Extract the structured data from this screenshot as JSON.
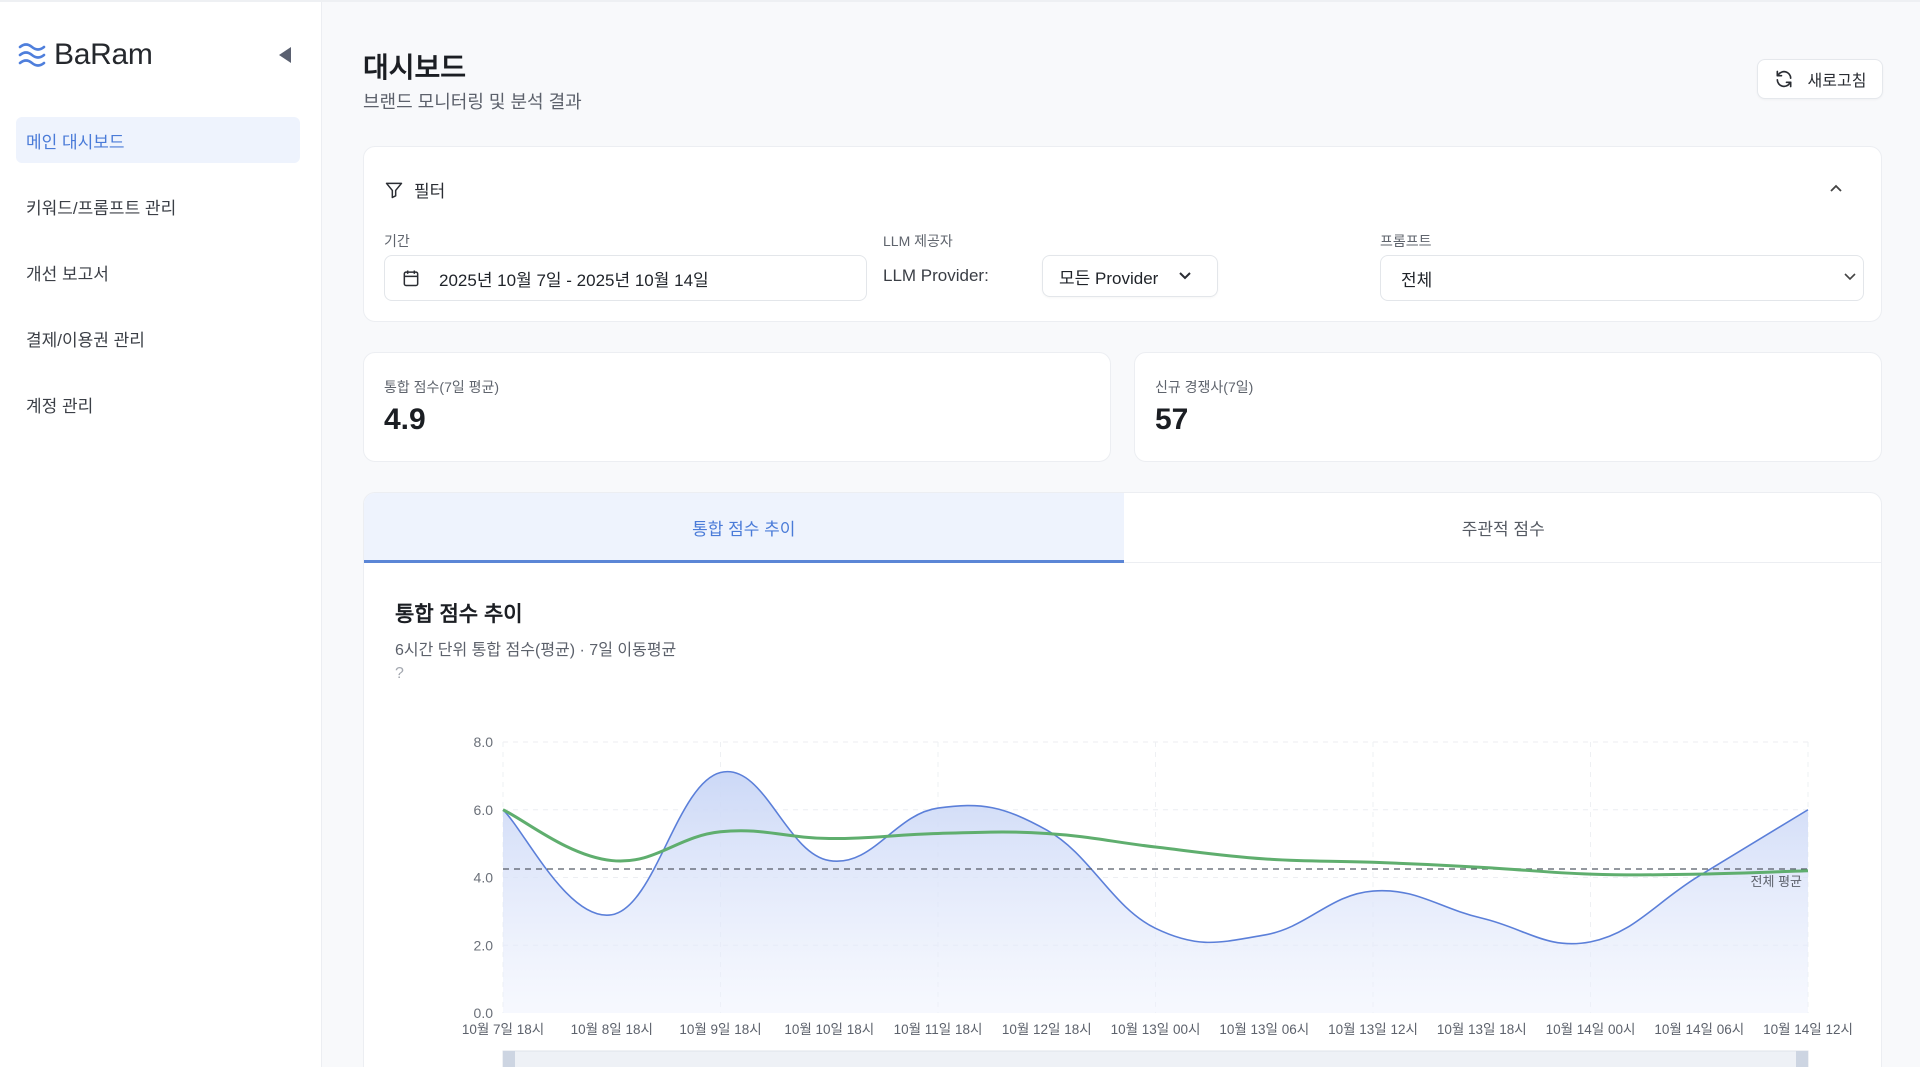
{
  "app": {
    "name": "BaRam"
  },
  "sidebar": {
    "items": [
      {
        "label": "메인 대시보드",
        "active": true
      },
      {
        "label": "키워드/프롬프트 관리",
        "active": false
      },
      {
        "label": "개선 보고서",
        "active": false
      },
      {
        "label": "결제/이용권 관리",
        "active": false
      },
      {
        "label": "계정 관리",
        "active": false
      }
    ]
  },
  "header": {
    "title": "대시보드",
    "subtitle": "브랜드 모니터링 및 분석 결과",
    "refresh_label": "새로고침"
  },
  "filter": {
    "title": "필터",
    "period_label": "기간",
    "period_value": "2025년 10월 7일 - 2025년 10월 14일",
    "llm_label": "LLM 제공자",
    "llm_provider_prefix": "LLM Provider:",
    "llm_provider_value": "모든 Provider",
    "prompt_label": "프롬프트",
    "prompt_value": "전체"
  },
  "kpis": [
    {
      "label": "통합 점수(7일 평균)",
      "value": "4.9"
    },
    {
      "label": "신규 경쟁사(7일)",
      "value": "57"
    }
  ],
  "tabs": [
    {
      "label": "통합 점수 추이",
      "active": true
    },
    {
      "label": "주관적 점수",
      "active": false
    }
  ],
  "chart": {
    "title": "통합 점수 추이",
    "subtitle": "6시간 단위 통합 점수(평균) · 7일 이동평균",
    "help": "?"
  },
  "colors": {
    "accent": "#4a7bd8",
    "score_line": "#5b7fd9",
    "moving_avg_line": "#5fae6e",
    "average_line": "#555a66"
  },
  "chart_data": {
    "type": "area",
    "title": "통합 점수 추이",
    "subtitle": "6시간 단위 통합 점수(평균) · 7일 이동평균",
    "xlabel": "",
    "ylabel": "",
    "ylim": [
      0,
      8
    ],
    "yticks": [
      "0.0",
      "2.0",
      "4.0",
      "6.0",
      "8.0"
    ],
    "grid": true,
    "categories": [
      "10월 7일 18시",
      "10월 8일 18시",
      "10월 9일 18시",
      "10월 10일 18시",
      "10월 11일 18시",
      "10월 12일 18시",
      "10월 13일 00시",
      "10월 13일 06시",
      "10월 13일 12시",
      "10월 13일 18시",
      "10월 14일 00시",
      "10월 14일 06시",
      "10월 14일 12시"
    ],
    "series": [
      {
        "name": "통합 점수",
        "type": "area",
        "values": [
          6.0,
          2.9,
          7.1,
          4.5,
          6.05,
          5.4,
          2.5,
          2.3,
          3.6,
          2.8,
          2.1,
          4.05,
          6.0
        ]
      },
      {
        "name": "7일 이동평균",
        "type": "line",
        "values": [
          6.0,
          4.5,
          5.35,
          5.15,
          5.3,
          5.3,
          4.9,
          4.55,
          4.45,
          4.3,
          4.1,
          4.1,
          4.2
        ]
      }
    ],
    "reference_lines": [
      {
        "label": "전체 평균",
        "value": 4.25,
        "style": "dashed"
      }
    ]
  }
}
